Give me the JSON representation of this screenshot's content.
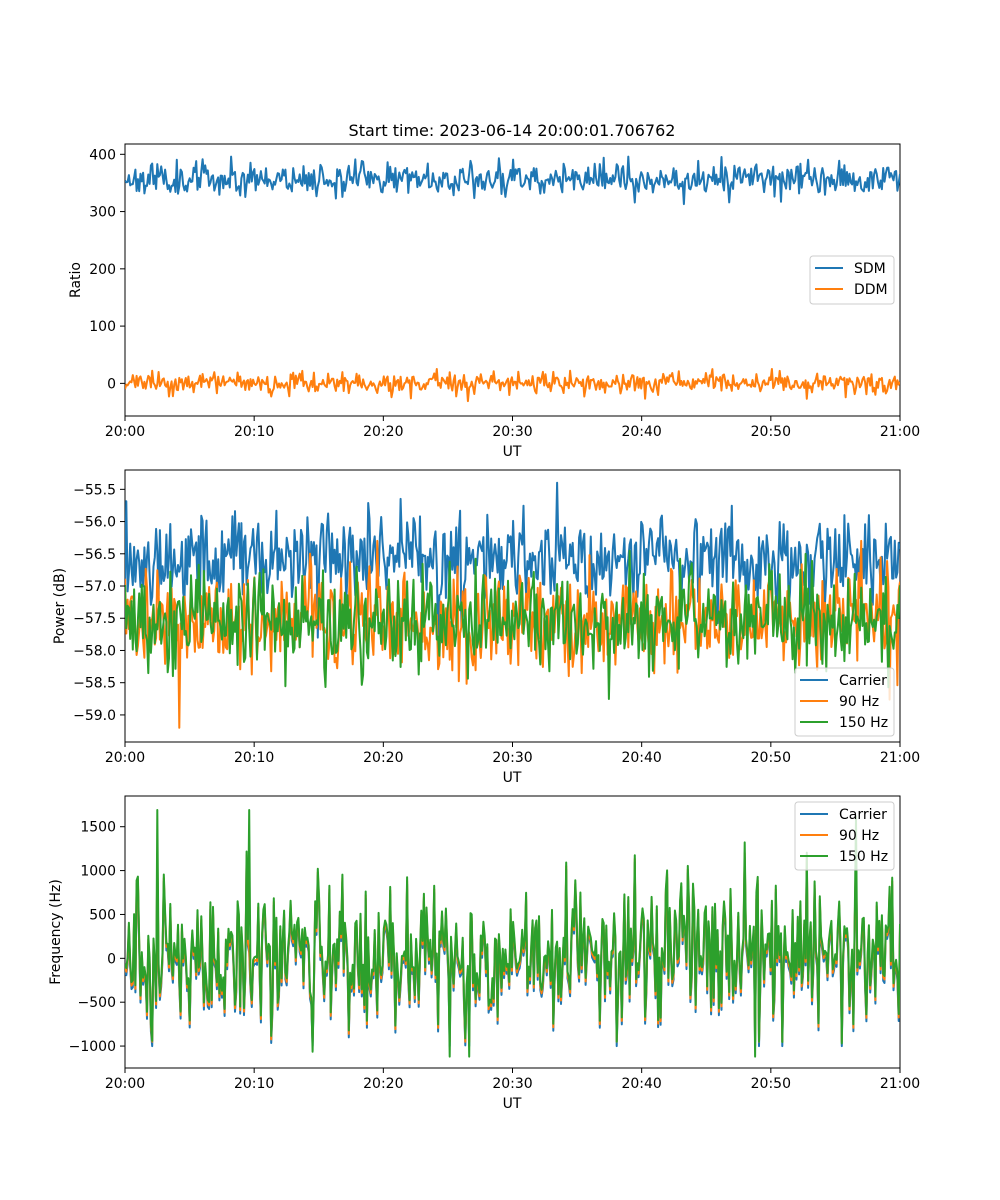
{
  "chart_data": [
    {
      "type": "line",
      "title": "Start time: 2023-06-14 20:00:01.706762",
      "xlabel": "UT",
      "ylabel": "Ratio",
      "xlim": [
        "20:00",
        "21:00"
      ],
      "ylim": [
        -57,
        418
      ],
      "xticks": [
        "20:00",
        "20:10",
        "20:20",
        "20:30",
        "20:40",
        "20:50",
        "21:00"
      ],
      "yticks": [
        0,
        100,
        200,
        300,
        400
      ],
      "ytick_labels": [
        "0",
        "100",
        "200",
        "300",
        "400"
      ],
      "legend_position": "center-right",
      "series": [
        {
          "name": "SDM",
          "color": "#1f77b4",
          "mean": 358,
          "spread": 14,
          "min": 313,
          "max": 396,
          "seed": 11
        },
        {
          "name": "DDM",
          "color": "#ff7f0e",
          "mean": 0,
          "spread": 9,
          "min": -33,
          "max": 25,
          "seed": 23
        }
      ]
    },
    {
      "type": "line",
      "title": "",
      "xlabel": "UT",
      "ylabel": "Power (dB)",
      "xlim": [
        "20:00",
        "21:00"
      ],
      "ylim": [
        -59.42,
        -55.2
      ],
      "xticks": [
        "20:00",
        "20:10",
        "20:20",
        "20:30",
        "20:40",
        "20:50",
        "21:00"
      ],
      "yticks": [
        -59.0,
        -58.5,
        -58.0,
        -57.5,
        -57.0,
        -56.5,
        -56.0,
        -55.5
      ],
      "ytick_labels": [
        "−59.0",
        "−58.5",
        "−58.0",
        "−57.5",
        "−57.0",
        "−56.5",
        "−56.0",
        "−55.5"
      ],
      "legend_position": "lower-right",
      "series": [
        {
          "name": "Carrier",
          "color": "#1f77b4",
          "mean": -56.55,
          "spread": 0.35,
          "min": -57.8,
          "max": -55.35,
          "seed": 37
        },
        {
          "name": "90 Hz",
          "color": "#ff7f0e",
          "mean": -57.55,
          "spread": 0.4,
          "min": -59.2,
          "max": -56.3,
          "seed": 41
        },
        {
          "name": "150 Hz",
          "color": "#2ca02c",
          "mean": -57.55,
          "spread": 0.4,
          "min": -58.95,
          "max": -56.2,
          "seed": 53
        }
      ]
    },
    {
      "type": "line",
      "title": "",
      "xlabel": "UT",
      "ylabel": "Frequency (Hz)",
      "xlim": [
        "20:00",
        "21:00"
      ],
      "ylim": [
        -1250,
        1850
      ],
      "xticks": [
        "20:00",
        "20:10",
        "20:20",
        "20:30",
        "20:40",
        "20:50",
        "21:00"
      ],
      "yticks": [
        -1000,
        -500,
        0,
        500,
        1000,
        1500
      ],
      "ytick_labels": [
        "−1000",
        "−500",
        "0",
        "500",
        "1000",
        "1500"
      ],
      "legend_position": "upper-right",
      "series": [
        {
          "name": "Carrier",
          "color": "#1f77b4",
          "mean": -20,
          "spread": 380,
          "min": -1000,
          "max": 1150,
          "seed": 71
        },
        {
          "name": "90 Hz",
          "color": "#ff7f0e",
          "mean": 20,
          "spread": 380,
          "min": -950,
          "max": 1200,
          "seed": 71
        },
        {
          "name": "150 Hz",
          "color": "#2ca02c",
          "mean": 60,
          "spread": 380,
          "min": -1120,
          "max": 1690,
          "seed": 71
        }
      ]
    }
  ]
}
